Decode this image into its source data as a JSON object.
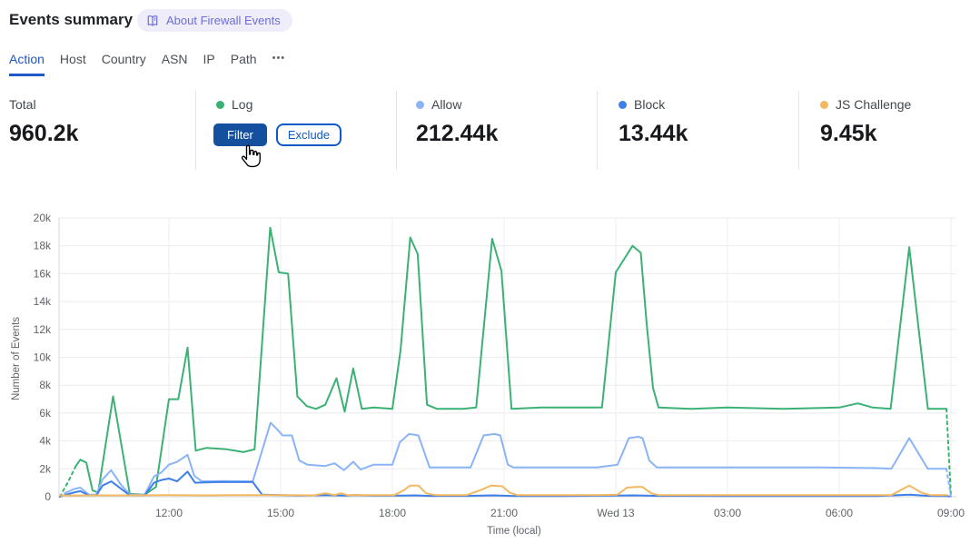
{
  "colors": {
    "filter_button": "#15509e",
    "exclude_blue": "#1059c9",
    "active_tab": "#2057c7",
    "badge_text": "#6b6fd7",
    "badge_bg": "#eeedf9"
  },
  "header": {
    "title": "Events summary",
    "about_badge": "About Firewall Events"
  },
  "tabs": {
    "items": [
      {
        "label": "Action",
        "active": true
      },
      {
        "label": "Host"
      },
      {
        "label": "Country"
      },
      {
        "label": "ASN"
      },
      {
        "label": "IP"
      },
      {
        "label": "Path"
      },
      {
        "label": "•••"
      }
    ]
  },
  "stats": {
    "columns": [
      {
        "label": "Total",
        "value": "960.2k"
      },
      {
        "label": "Log",
        "buttons": {
          "filter": "Filter",
          "exclude": "Exclude"
        }
      },
      {
        "label": "Allow",
        "value": "212.44k"
      },
      {
        "label": "Block",
        "value": "13.44k"
      },
      {
        "label": "JS Challenge",
        "value": "9.45k"
      }
    ]
  },
  "chart_data": {
    "type": "line",
    "title": "",
    "xlabel": "Time (local)",
    "ylabel": "Number of Events",
    "value_unit": "k (thousands of events)",
    "ylim": [
      0,
      20000
    ],
    "grid": true,
    "legend_position": "top stats row",
    "y_ticks": [
      "0",
      "2k",
      "4k",
      "6k",
      "8k",
      "10k",
      "12k",
      "14k",
      "16k",
      "18k",
      "20k"
    ],
    "x_ticks": [
      {
        "t": 12,
        "label": "12:00"
      },
      {
        "t": 15,
        "label": "15:00"
      },
      {
        "t": 18,
        "label": "18:00"
      },
      {
        "t": 21,
        "label": "21:00"
      },
      {
        "t": 24,
        "label": "Wed 13"
      },
      {
        "t": 27,
        "label": "03:00"
      },
      {
        "t": 30,
        "label": "06:00"
      },
      {
        "t": 33,
        "label": "09:00"
      }
    ],
    "x_domain_hours": [
      9.05,
      33
    ],
    "series": [
      {
        "name": "Log",
        "color": "#3bb273",
        "segments": [
          {
            "style": "dashed",
            "points": [
              [
                9.07,
                0
              ],
              [
                9.3,
                1.1
              ],
              [
                9.5,
                2.2
              ]
            ]
          },
          {
            "style": "solid",
            "points": [
              [
                9.5,
                2.2
              ],
              [
                9.62,
                2.65
              ],
              [
                9.78,
                2.45
              ],
              [
                9.95,
                0.45
              ],
              [
                10.1,
                0.3
              ],
              [
                10.5,
                7.2
              ],
              [
                10.95,
                0.2
              ],
              [
                11.35,
                0.15
              ],
              [
                11.65,
                0.7
              ],
              [
                12.0,
                7.0
              ],
              [
                12.25,
                7.0
              ],
              [
                12.5,
                10.7
              ],
              [
                12.72,
                3.3
              ],
              [
                13.0,
                3.5
              ],
              [
                13.55,
                3.4
              ],
              [
                14.0,
                3.2
              ],
              [
                14.3,
                3.4
              ],
              [
                14.72,
                19.3
              ],
              [
                14.95,
                16.1
              ],
              [
                15.2,
                16.0
              ],
              [
                15.45,
                7.2
              ],
              [
                15.7,
                6.5
              ],
              [
                15.95,
                6.3
              ],
              [
                16.2,
                6.6
              ],
              [
                16.5,
                8.5
              ],
              [
                16.72,
                6.1
              ],
              [
                16.95,
                9.2
              ],
              [
                17.18,
                6.3
              ],
              [
                17.5,
                6.4
              ],
              [
                18.0,
                6.3
              ],
              [
                18.22,
                10.5
              ],
              [
                18.48,
                18.6
              ],
              [
                18.68,
                17.4
              ],
              [
                18.93,
                6.6
              ],
              [
                19.2,
                6.3
              ],
              [
                19.9,
                6.3
              ],
              [
                20.25,
                6.4
              ],
              [
                20.68,
                18.5
              ],
              [
                20.93,
                16.2
              ],
              [
                21.2,
                6.3
              ],
              [
                22.0,
                6.4
              ],
              [
                23.0,
                6.4
              ],
              [
                23.63,
                6.4
              ],
              [
                24.0,
                16.1
              ],
              [
                24.45,
                18.0
              ],
              [
                24.67,
                17.5
              ],
              [
                24.83,
                12.4
              ],
              [
                25.0,
                7.8
              ],
              [
                25.15,
                6.4
              ],
              [
                26.0,
                6.3
              ],
              [
                27.0,
                6.4
              ],
              [
                28.5,
                6.3
              ],
              [
                30.0,
                6.4
              ],
              [
                30.5,
                6.7
              ],
              [
                30.9,
                6.4
              ],
              [
                31.38,
                6.3
              ],
              [
                31.88,
                17.9
              ],
              [
                32.38,
                6.3
              ],
              [
                32.88,
                6.3
              ]
            ]
          },
          {
            "style": "dashed",
            "points": [
              [
                32.88,
                6.3
              ],
              [
                33.0,
                0
              ]
            ]
          }
        ]
      },
      {
        "name": "Allow",
        "color": "#8ab4f8",
        "segments": [
          {
            "style": "dashed",
            "points": [
              [
                9.07,
                0
              ],
              [
                9.2,
                0.25
              ]
            ]
          },
          {
            "style": "solid",
            "points": [
              [
                9.2,
                0.25
              ],
              [
                9.45,
                0.55
              ],
              [
                9.62,
                0.65
              ],
              [
                9.85,
                0.15
              ],
              [
                10.05,
                0.15
              ],
              [
                10.22,
                1.25
              ],
              [
                10.45,
                1.9
              ],
              [
                10.7,
                0.9
              ],
              [
                10.95,
                0.15
              ],
              [
                11.35,
                0.15
              ],
              [
                11.6,
                1.45
              ],
              [
                11.8,
                1.75
              ],
              [
                12.0,
                2.3
              ],
              [
                12.22,
                2.5
              ],
              [
                12.5,
                3.0
              ],
              [
                12.68,
                1.5
              ],
              [
                12.88,
                1.1
              ],
              [
                13.5,
                1.12
              ],
              [
                14.25,
                1.1
              ],
              [
                14.73,
                5.3
              ],
              [
                14.92,
                4.8
              ],
              [
                15.05,
                4.4
              ],
              [
                15.3,
                4.4
              ],
              [
                15.5,
                2.6
              ],
              [
                15.72,
                2.3
              ],
              [
                16.2,
                2.2
              ],
              [
                16.45,
                2.4
              ],
              [
                16.7,
                1.9
              ],
              [
                16.95,
                2.5
              ],
              [
                17.15,
                1.95
              ],
              [
                17.5,
                2.3
              ],
              [
                18.0,
                2.3
              ],
              [
                18.2,
                3.9
              ],
              [
                18.45,
                4.5
              ],
              [
                18.7,
                4.4
              ],
              [
                19.0,
                2.1
              ],
              [
                19.5,
                2.1
              ],
              [
                20.1,
                2.1
              ],
              [
                20.45,
                4.4
              ],
              [
                20.75,
                4.5
              ],
              [
                20.9,
                4.4
              ],
              [
                21.1,
                2.3
              ],
              [
                21.25,
                2.1
              ],
              [
                22.5,
                2.1
              ],
              [
                23.5,
                2.1
              ],
              [
                24.05,
                2.3
              ],
              [
                24.35,
                4.2
              ],
              [
                24.6,
                4.3
              ],
              [
                24.72,
                4.2
              ],
              [
                24.9,
                2.6
              ],
              [
                25.1,
                2.1
              ],
              [
                26.5,
                2.1
              ],
              [
                28.0,
                2.1
              ],
              [
                29.5,
                2.1
              ],
              [
                31.0,
                2.05
              ],
              [
                31.4,
                2.0
              ],
              [
                31.88,
                4.2
              ],
              [
                32.38,
                2.0
              ],
              [
                32.88,
                2.0
              ]
            ]
          },
          {
            "style": "dashed",
            "points": [
              [
                32.88,
                2.0
              ],
              [
                33.0,
                0
              ]
            ]
          }
        ]
      },
      {
        "name": "Block",
        "color": "#3e7fe8",
        "segments": [
          {
            "style": "dashed",
            "points": [
              [
                9.07,
                0
              ],
              [
                9.2,
                0.12
              ]
            ]
          },
          {
            "style": "solid",
            "points": [
              [
                9.2,
                0.12
              ],
              [
                9.45,
                0.3
              ],
              [
                9.62,
                0.4
              ],
              [
                9.85,
                0.1
              ],
              [
                10.05,
                0.1
              ],
              [
                10.22,
                0.8
              ],
              [
                10.45,
                1.1
              ],
              [
                10.7,
                0.6
              ],
              [
                10.95,
                0.1
              ],
              [
                11.35,
                0.1
              ],
              [
                11.6,
                1.0
              ],
              [
                11.8,
                1.2
              ],
              [
                12.0,
                1.3
              ],
              [
                12.22,
                1.1
              ],
              [
                12.5,
                1.8
              ],
              [
                12.7,
                1.0
              ],
              [
                13.3,
                1.05
              ],
              [
                14.25,
                1.05
              ],
              [
                14.5,
                0.15
              ],
              [
                15.5,
                0.08
              ],
              [
                16.3,
                0.12
              ],
              [
                16.7,
                0.08
              ],
              [
                17.0,
                0.12
              ],
              [
                17.5,
                0.08
              ],
              [
                18.3,
                0.08
              ],
              [
                18.6,
                0.1
              ],
              [
                19.0,
                0.06
              ],
              [
                20.0,
                0.06
              ],
              [
                20.7,
                0.1
              ],
              [
                21.3,
                0.05
              ],
              [
                22.5,
                0.05
              ],
              [
                24.0,
                0.08
              ],
              [
                24.5,
                0.1
              ],
              [
                25.2,
                0.06
              ],
              [
                27.0,
                0.05
              ],
              [
                29.0,
                0.05
              ],
              [
                31.0,
                0.05
              ],
              [
                31.9,
                0.15
              ],
              [
                32.4,
                0.06
              ],
              [
                32.88,
                0.05
              ]
            ]
          },
          {
            "style": "dashed",
            "points": [
              [
                32.88,
                0.05
              ],
              [
                33.0,
                0
              ]
            ]
          }
        ]
      },
      {
        "name": "JS Challenge",
        "color": "#f4b860",
        "segments": [
          {
            "style": "solid",
            "points": [
              [
                9.07,
                0.08
              ],
              [
                10.0,
                0.1
              ],
              [
                11.0,
                0.1
              ],
              [
                12.0,
                0.12
              ],
              [
                13.0,
                0.1
              ],
              [
                14.0,
                0.12
              ],
              [
                15.0,
                0.12
              ],
              [
                15.9,
                0.1
              ],
              [
                16.2,
                0.25
              ],
              [
                16.45,
                0.12
              ],
              [
                16.62,
                0.25
              ],
              [
                16.8,
                0.12
              ],
              [
                17.5,
                0.12
              ],
              [
                18.05,
                0.12
              ],
              [
                18.3,
                0.45
              ],
              [
                18.48,
                0.8
              ],
              [
                18.7,
                0.8
              ],
              [
                18.9,
                0.25
              ],
              [
                19.15,
                0.12
              ],
              [
                20.0,
                0.12
              ],
              [
                20.4,
                0.5
              ],
              [
                20.65,
                0.8
              ],
              [
                20.95,
                0.75
              ],
              [
                21.15,
                0.3
              ],
              [
                21.35,
                0.12
              ],
              [
                22.5,
                0.12
              ],
              [
                23.5,
                0.12
              ],
              [
                24.05,
                0.15
              ],
              [
                24.3,
                0.65
              ],
              [
                24.55,
                0.7
              ],
              [
                24.72,
                0.7
              ],
              [
                24.95,
                0.25
              ],
              [
                25.15,
                0.12
              ],
              [
                26.5,
                0.12
              ],
              [
                28.0,
                0.12
              ],
              [
                30.0,
                0.12
              ],
              [
                31.4,
                0.12
              ],
              [
                31.88,
                0.8
              ],
              [
                32.2,
                0.3
              ],
              [
                32.45,
                0.12
              ],
              [
                32.9,
                0.12
              ]
            ]
          }
        ]
      }
    ]
  }
}
